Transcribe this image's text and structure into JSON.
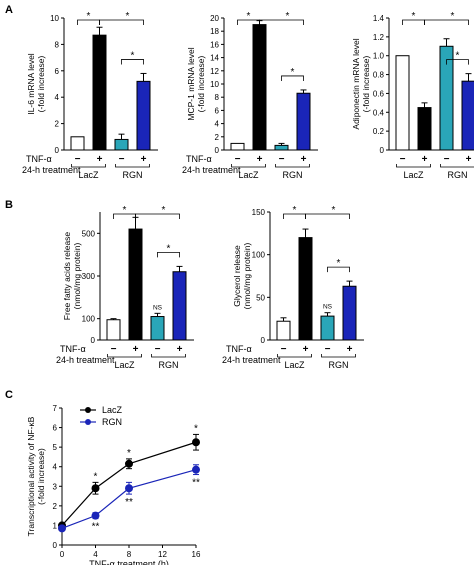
{
  "panel_labels": [
    "A",
    "B",
    "C"
  ],
  "treatment": {
    "signs": [
      "−",
      "+",
      "−",
      "+"
    ],
    "tnf_label": "TNF-α",
    "time_label": "24-h treatment",
    "groups": [
      "LacZ",
      "RGN"
    ]
  },
  "colors": {
    "lacz_off": "#ffffff",
    "lacz_on": "#000000",
    "rgn_off": "#2aa6b8",
    "rgn_on": "#1a25b8",
    "line_lacz": "#000000",
    "line_rgn": "#1a25b8"
  },
  "chart_data": [
    {
      "type": "bar",
      "panel": "A",
      "ylabel": [
        "IL-6 mRNA level",
        "(-fold increase)"
      ],
      "ylim": [
        0,
        10
      ],
      "yticks": [
        "0",
        "2",
        "4",
        "6",
        "8",
        "10"
      ],
      "categories": [
        "LacZ −",
        "LacZ +",
        "RGN −",
        "RGN +"
      ],
      "values": [
        1.0,
        8.7,
        0.8,
        5.2
      ],
      "errors": [
        0.0,
        0.6,
        0.4,
        0.6
      ],
      "significance": [
        {
          "from": 0,
          "to": 1,
          "label": "*"
        },
        {
          "from": 1,
          "to": 3,
          "label": "*"
        },
        {
          "from": 2,
          "to": 3,
          "label": "*"
        }
      ]
    },
    {
      "type": "bar",
      "panel": "A",
      "ylabel": [
        "MCP-1 mRNA level",
        "(-fold increase)"
      ],
      "ylim": [
        0,
        20
      ],
      "yticks": [
        "0",
        "2",
        "4",
        "6",
        "8",
        "10",
        "12",
        "14",
        "16",
        "18",
        "20"
      ],
      "categories": [
        "LacZ −",
        "LacZ +",
        "RGN −",
        "RGN +"
      ],
      "values": [
        1.0,
        19.0,
        0.7,
        8.6
      ],
      "errors": [
        0.0,
        0.6,
        0.3,
        0.5
      ],
      "significance": [
        {
          "from": 0,
          "to": 1,
          "label": "*"
        },
        {
          "from": 1,
          "to": 3,
          "label": "*"
        },
        {
          "from": 2,
          "to": 3,
          "label": "*"
        }
      ]
    },
    {
      "type": "bar",
      "panel": "A",
      "ylabel": [
        "Adiponectin mRNA level",
        "(-fold increase)"
      ],
      "ylim": [
        0,
        1.4
      ],
      "yticks": [
        "0",
        "0.2",
        "0.4",
        "0.6",
        "0.8",
        "1.0",
        "1.2",
        "1.4"
      ],
      "categories": [
        "LacZ −",
        "LacZ +",
        "RGN −",
        "RGN +"
      ],
      "values": [
        1.0,
        0.45,
        1.1,
        0.73
      ],
      "errors": [
        0.0,
        0.05,
        0.08,
        0.08
      ],
      "significance": [
        {
          "from": 0,
          "to": 1,
          "label": "*"
        },
        {
          "from": 1,
          "to": 3,
          "label": "*"
        },
        {
          "from": 2,
          "to": 3,
          "label": "*"
        }
      ]
    },
    {
      "type": "bar",
      "panel": "B",
      "ylabel": [
        "Free fatty acids release",
        "(nmol/mg protein)"
      ],
      "ylim": [
        0,
        600
      ],
      "yticks": [
        "0",
        "100",
        "300",
        "500"
      ],
      "categories": [
        "LacZ −",
        "LacZ +",
        "RGN −",
        "RGN +"
      ],
      "values": [
        95,
        520,
        110,
        320
      ],
      "errors": [
        5,
        55,
        15,
        25
      ],
      "ns_label": "NS",
      "significance": [
        {
          "from": 0,
          "to": 1,
          "label": "*"
        },
        {
          "from": 1,
          "to": 3,
          "label": "*"
        },
        {
          "from": 2,
          "to": 3,
          "label": "*"
        }
      ]
    },
    {
      "type": "bar",
      "panel": "B",
      "ylabel": [
        "Glycerol release",
        "(nmol/mg protein)"
      ],
      "ylim": [
        0,
        150
      ],
      "yticks": [
        "0",
        "50",
        "100",
        "150"
      ],
      "categories": [
        "LacZ −",
        "LacZ +",
        "RGN −",
        "RGN +"
      ],
      "values": [
        22,
        120,
        28,
        63
      ],
      "errors": [
        4,
        10,
        4,
        6
      ],
      "ns_label": "NS",
      "significance": [
        {
          "from": 0,
          "to": 1,
          "label": "*"
        },
        {
          "from": 1,
          "to": 3,
          "label": "*"
        },
        {
          "from": 2,
          "to": 3,
          "label": "*"
        }
      ]
    },
    {
      "type": "line",
      "panel": "C",
      "xlabel": "TNF-α treatment (h)",
      "ylabel": [
        "Transcriptional activity of NF-κB",
        "(-fold increase)"
      ],
      "x": [
        0,
        4,
        8,
        16
      ],
      "xlim": [
        0,
        16
      ],
      "ylim": [
        0,
        7
      ],
      "xticks": [
        "0",
        "4",
        "8",
        "12",
        "16"
      ],
      "yticks": [
        "0",
        "1",
        "2",
        "3",
        "4",
        "5",
        "6",
        "7"
      ],
      "series": [
        {
          "name": "LacZ",
          "values": [
            1.0,
            2.9,
            4.15,
            5.25
          ],
          "errors": [
            0.1,
            0.3,
            0.25,
            0.4
          ],
          "annotations": [
            "",
            "*",
            "*",
            "*"
          ]
        },
        {
          "name": "RGN",
          "values": [
            0.85,
            1.5,
            2.9,
            3.85
          ],
          "errors": [
            0.1,
            0.15,
            0.3,
            0.25
          ],
          "annotations": [
            "",
            "**",
            "**",
            "**"
          ]
        }
      ]
    }
  ]
}
